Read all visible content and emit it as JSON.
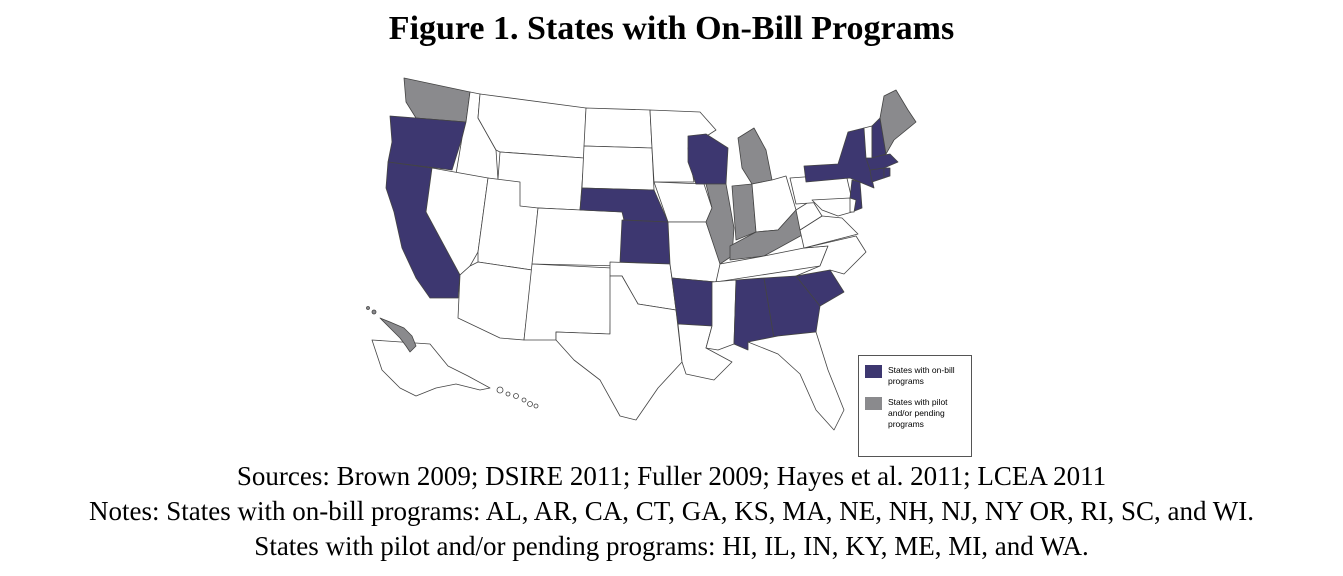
{
  "title": "Figure 1. States with On-Bill Programs",
  "colors": {
    "on_bill": "#3d3770",
    "pilot": "#8a8a8d",
    "none": "#ffffff",
    "border": "#444444"
  },
  "legend": {
    "on_bill_label": "States with on-bill programs",
    "pilot_label": "States with pilot and/or pending programs"
  },
  "states_on_bill": [
    "AL",
    "AR",
    "CA",
    "CT",
    "GA",
    "KS",
    "MA",
    "NE",
    "NH",
    "NJ",
    "NY",
    "OR",
    "RI",
    "SC",
    "WI"
  ],
  "states_pilot": [
    "HI",
    "IL",
    "IN",
    "KY",
    "ME",
    "MI",
    "WA"
  ],
  "sources": "Sources: Brown 2009; DSIRE 2011; Fuller 2009; Hayes et al. 2011; LCEA 2011",
  "notes_on_bill": "Notes: States with on-bill programs: AL, AR, CA, CT, GA, KS, MA, NE, NH, NJ, NY OR, RI, SC, and WI.",
  "notes_pilot": "States with pilot and/or pending programs: HI, IL, IN, KY, ME, MI, and WA."
}
